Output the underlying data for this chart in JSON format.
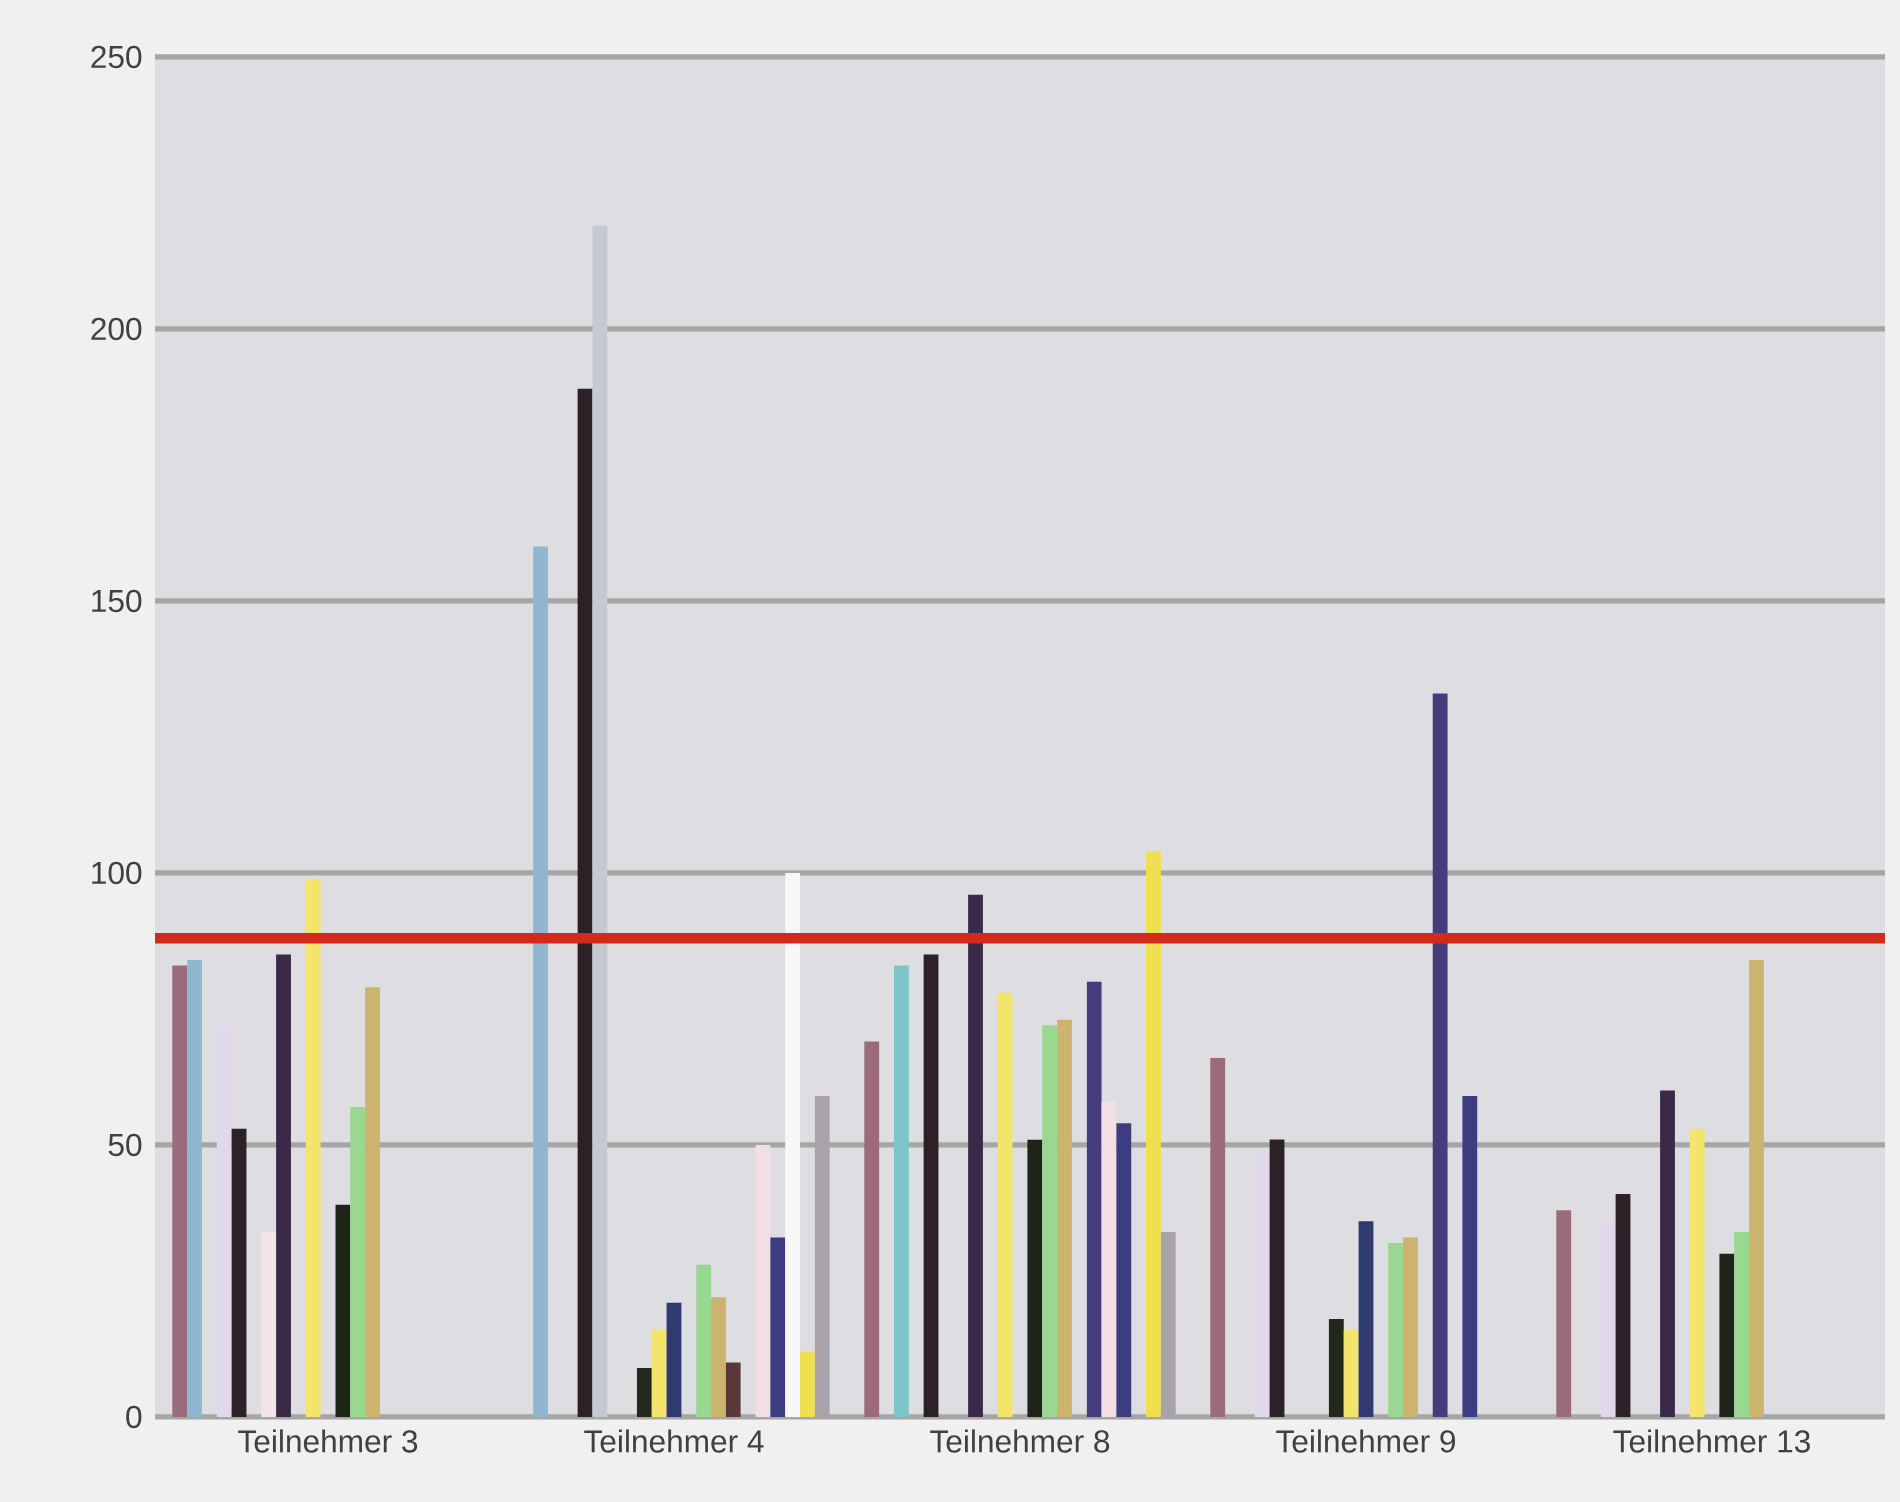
{
  "chart_data": {
    "type": "bar",
    "categories": [
      "Teilnehmer 3",
      "Teilnehmer 4",
      "Teilnehmer 8",
      "Teilnehmer 9",
      "Teilnehmer 13"
    ],
    "series": [
      {
        "color": "#9b6b7a",
        "values": [
          83,
          null,
          69,
          66,
          38
        ]
      },
      {
        "color": "#8fb8d0",
        "values": [
          84,
          160,
          null,
          null,
          null
        ]
      },
      {
        "color": "#7cc4c8",
        "values": [
          null,
          null,
          83,
          null,
          null
        ]
      },
      {
        "color": "#e2d8ec",
        "values": [
          72,
          null,
          null,
          48,
          36
        ]
      },
      {
        "color": "#2b2126",
        "values": [
          53,
          189,
          85,
          51,
          41
        ]
      },
      {
        "color": "#c4cad0",
        "values": [
          null,
          219,
          null,
          null,
          null
        ]
      },
      {
        "color": "#f3e4ea",
        "values": [
          34,
          null,
          null,
          null,
          null
        ]
      },
      {
        "color": "#3a2a48",
        "values": [
          85,
          null,
          96,
          null,
          60
        ]
      },
      {
        "color": "#22281c",
        "values": [
          null,
          9,
          null,
          18,
          null
        ]
      },
      {
        "color": "#f3e56c",
        "values": [
          99,
          16,
          78,
          16,
          53
        ]
      },
      {
        "color": "#2f3a70",
        "values": [
          null,
          21,
          null,
          36,
          null
        ]
      },
      {
        "color": "#1e2418",
        "values": [
          39,
          null,
          51,
          null,
          30
        ]
      },
      {
        "color": "#98d890",
        "values": [
          57,
          28,
          72,
          32,
          34
        ]
      },
      {
        "color": "#cdb46e",
        "values": [
          79,
          22,
          73,
          33,
          84
        ]
      },
      {
        "color": "#5a3838",
        "values": [
          null,
          10,
          null,
          null,
          null
        ]
      },
      {
        "color": "#463c7c",
        "values": [
          null,
          null,
          80,
          133,
          null
        ]
      },
      {
        "color": "#f2dfe4",
        "values": [
          null,
          50,
          58,
          null,
          null
        ]
      },
      {
        "color": "#3c3c80",
        "values": [
          null,
          33,
          54,
          59,
          null
        ]
      },
      {
        "color": "#f7f7fa",
        "values": [
          null,
          100,
          null,
          null,
          null
        ]
      },
      {
        "color": "#efe050",
        "values": [
          null,
          12,
          104,
          null,
          null
        ]
      },
      {
        "color": "#a9a2aa",
        "values": [
          null,
          59,
          34,
          null,
          null
        ]
      }
    ],
    "ylim": [
      0,
      250
    ],
    "yticks": [
      0,
      50,
      100,
      150,
      200,
      250
    ],
    "grid": "y",
    "ref_lines": [
      {
        "axis": "y",
        "value": 88,
        "color": "#d42a1c"
      }
    ]
  }
}
